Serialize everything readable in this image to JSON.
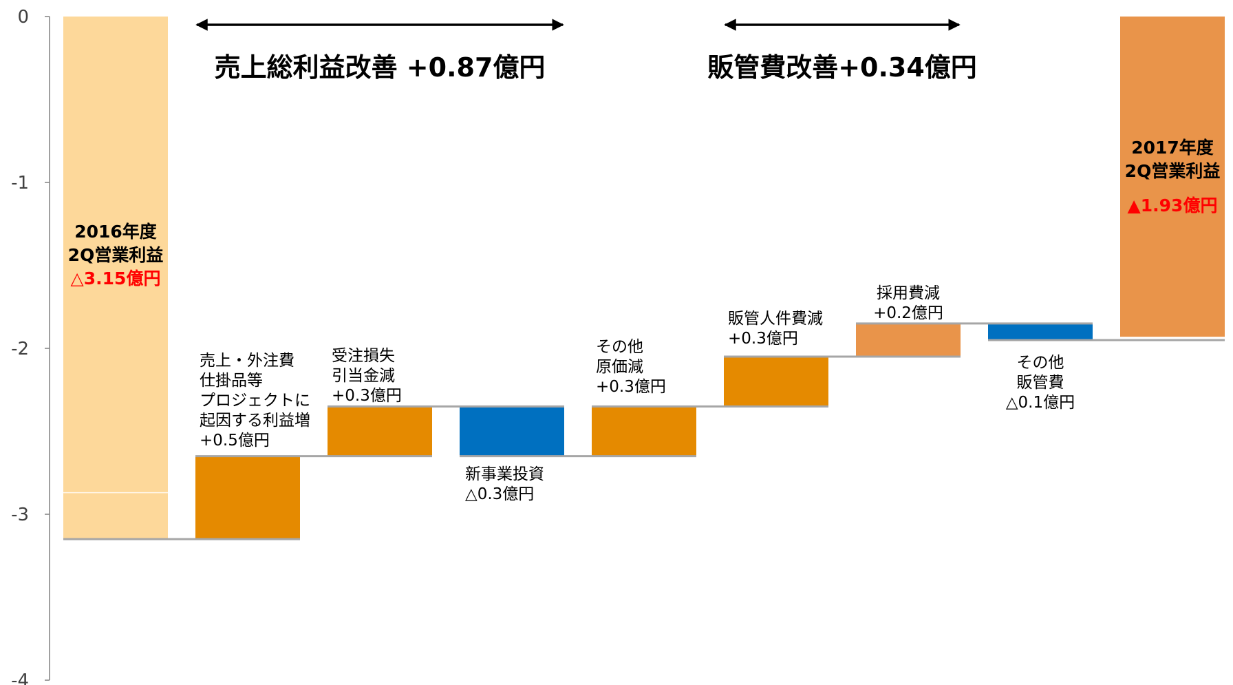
{
  "chart_data": {
    "type": "bar",
    "subtype": "waterfall",
    "ylim": [
      -4,
      0
    ],
    "yticks": [
      "0",
      "-1",
      "-2",
      "-3",
      "-4"
    ],
    "grid": false,
    "legend": "none",
    "headers": [
      {
        "text": "売上総利益改善 +0.87億円",
        "span": [
          1,
          4
        ]
      },
      {
        "text": "販管費改善+0.34億円",
        "span": [
          5,
          7
        ]
      }
    ],
    "bars": [
      {
        "kind": "total",
        "start": 0,
        "end": -3.15,
        "color": "#FDD89A",
        "label": [
          "2016年度",
          "2Q営業利益"
        ],
        "value_label": "△3.15億円"
      },
      {
        "kind": "step",
        "start": -3.15,
        "end": -2.65,
        "color": "#E58A00",
        "label": [
          "売上・外注費",
          "仕掛品等",
          "プロジェクトに",
          "起因する利益増",
          "+0.5億円"
        ]
      },
      {
        "kind": "step",
        "start": -2.65,
        "end": -2.35,
        "color": "#E58A00",
        "label": [
          "受注損失",
          "引当金減",
          "+0.3億円"
        ]
      },
      {
        "kind": "step",
        "start": -2.35,
        "end": -2.65,
        "color": "#0070C0",
        "label": [
          "新事業投資",
          "△0.3億円"
        ]
      },
      {
        "kind": "step",
        "start": -2.65,
        "end": -2.35,
        "color": "#E58A00",
        "label": [
          "その他",
          "原価減",
          "+0.3億円"
        ]
      },
      {
        "kind": "step",
        "start": -2.35,
        "end": -2.05,
        "color": "#E58A00",
        "label": [
          "販管人件費減",
          "+0.3億円"
        ]
      },
      {
        "kind": "step",
        "start": -2.05,
        "end": -1.85,
        "color": "#E9944A",
        "label": [
          "採用費減",
          "+0.2億円"
        ]
      },
      {
        "kind": "step",
        "start": -1.85,
        "end": -1.95,
        "color": "#0070C0",
        "label": [
          "その他",
          "販管費",
          "△0.1億円"
        ]
      },
      {
        "kind": "total",
        "start": 0,
        "end": -1.93,
        "color": "#E9944A",
        "label": [
          "2017年度",
          "2Q営業利益"
        ],
        "value_label": "▲1.93億円"
      }
    ]
  },
  "colors": {
    "axis": "#808080",
    "connector": "#A6A6A6",
    "arrow": "#000000",
    "red": "#FF0000"
  }
}
